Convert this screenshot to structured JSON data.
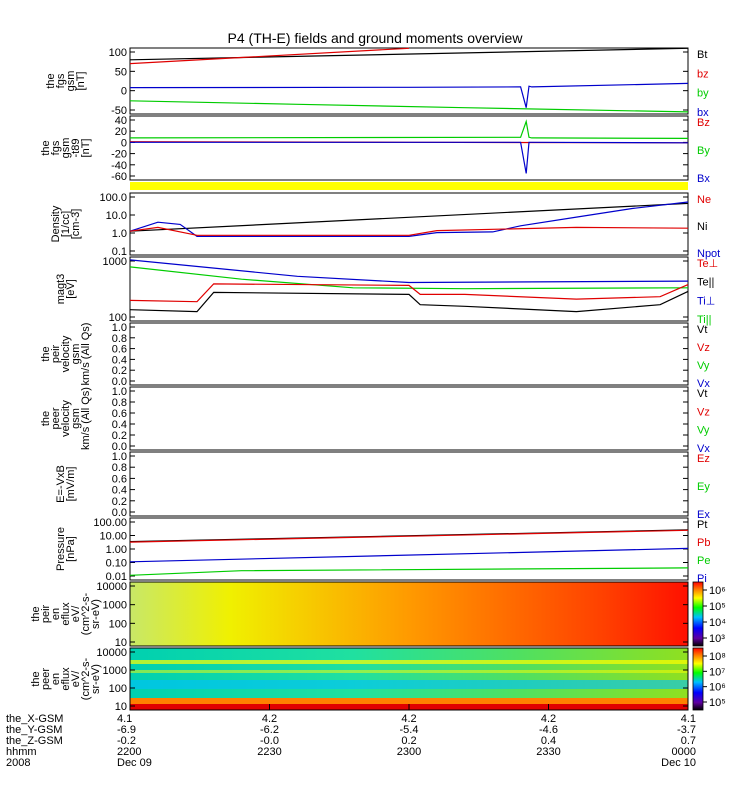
{
  "title": "P4 (TH-E) fields and ground moments overview",
  "colors": {
    "black": "#000000",
    "red": "#e00000",
    "green": "#00cc00",
    "blue": "#0000cc",
    "yellow": "#ffff00"
  },
  "chart_data": [
    {
      "type": "line",
      "panel": "fgs_gsm",
      "ylabel": [
        "the",
        "fgs",
        "gsm",
        "[nT]"
      ],
      "yticks": [
        "100",
        "50",
        "0",
        "-50"
      ],
      "ylim": [
        -78,
        112
      ],
      "legend": [
        {
          "name": "Bt",
          "color": "black"
        },
        {
          "name": "bz",
          "color": "red"
        },
        {
          "name": "by",
          "color": "green"
        },
        {
          "name": "bx",
          "color": "blue"
        }
      ],
      "series": [
        {
          "name": "Bt",
          "color": "black",
          "x": [
            0,
            1
          ],
          "y": [
            78,
            111
          ]
        },
        {
          "name": "bz",
          "color": "red",
          "x": [
            0,
            0.5
          ],
          "y": [
            67,
            111
          ]
        },
        {
          "name": "by",
          "color": "green",
          "x": [
            0,
            0.3,
            0.6,
            1
          ],
          "y": [
            -40,
            -50,
            -60,
            -72
          ]
        },
        {
          "name": "bx",
          "color": "blue",
          "x": [
            0,
            0.5,
            0.7,
            0.71,
            0.715,
            0.72,
            1
          ],
          "y": [
            -2,
            -1,
            0,
            -60,
            2,
            0,
            10
          ]
        }
      ]
    },
    {
      "type": "line",
      "panel": "fgs_dsl",
      "ylabel": [
        "the",
        "fgs",
        "gsm",
        "-t89",
        "[nT]"
      ],
      "yticks": [
        "40",
        "20",
        "0",
        "-20",
        "-40",
        "-60"
      ],
      "ylim": [
        -72,
        45
      ],
      "legend": [
        {
          "name": "Bz",
          "color": "red"
        },
        {
          "name": "By",
          "color": "green"
        },
        {
          "name": "Bx",
          "color": "blue"
        }
      ],
      "series": [
        {
          "name": "By",
          "color": "green",
          "x": [
            0,
            0.7,
            0.71,
            0.715,
            0.72,
            1
          ],
          "y": [
            5,
            6,
            35,
            6,
            5,
            4
          ]
        },
        {
          "name": "Bz",
          "color": "red",
          "x": [
            0,
            0.5,
            1
          ],
          "y": [
            -2,
            -3,
            -4
          ]
        },
        {
          "name": "Bx",
          "color": "blue",
          "x": [
            0,
            0.7,
            0.71,
            0.715,
            0.72,
            1
          ],
          "y": [
            -3,
            -3,
            -60,
            -3,
            -3,
            -4
          ]
        }
      ]
    },
    {
      "type": "line",
      "panel": "density",
      "log": true,
      "ylabel": [
        "Density",
        "[1/cc]",
        "[cm-3]"
      ],
      "yticks": [
        "100.0",
        "10.0",
        "1.0",
        "0.1"
      ],
      "ylim": [
        0.05,
        200
      ],
      "legend": [
        {
          "name": "Ne",
          "color": "red"
        },
        {
          "name": "Ni",
          "color": "black"
        },
        {
          "name": "Npot",
          "color": "blue"
        }
      ],
      "series": [
        {
          "name": "Ni",
          "color": "black",
          "x": [
            0,
            1
          ],
          "y": [
            1.2,
            50
          ]
        },
        {
          "name": "Npot",
          "color": "blue",
          "x": [
            0,
            0.05,
            0.09,
            0.12,
            0.5,
            0.55,
            0.65,
            0.7,
            0.8,
            0.9,
            1
          ],
          "y": [
            1.2,
            4,
            3,
            0.6,
            0.6,
            1,
            1.1,
            2.5,
            8,
            25,
            60
          ]
        },
        {
          "name": "Ne",
          "color": "red",
          "x": [
            0,
            0.05,
            0.12,
            0.5,
            0.55,
            0.8,
            1
          ],
          "y": [
            1.2,
            2,
            0.7,
            0.7,
            1.3,
            2,
            1.8
          ]
        }
      ]
    },
    {
      "type": "line",
      "panel": "temperature",
      "log": true,
      "ylabel": [
        "magt3",
        "[eV]"
      ],
      "yticks": [
        "1000",
        "100"
      ],
      "ylim": [
        100,
        1000
      ],
      "legend": [
        {
          "name": "Te⊥",
          "color": "red"
        },
        {
          "name": "Te||",
          "color": "black"
        },
        {
          "name": "Ti⊥",
          "color": "blue"
        },
        {
          "name": "Ti||",
          "color": "green"
        }
      ],
      "series": [
        {
          "name": "Ti⊥",
          "color": "blue",
          "x": [
            0,
            0.3,
            0.5,
            1
          ],
          "y": [
            900,
            500,
            400,
            420
          ]
        },
        {
          "name": "Ti||",
          "color": "green",
          "x": [
            0,
            0.2,
            0.4,
            0.6,
            1
          ],
          "y": [
            700,
            450,
            330,
            320,
            330
          ]
        },
        {
          "name": "Te⊥",
          "color": "red",
          "x": [
            0,
            0.12,
            0.15,
            0.5,
            0.52,
            0.6,
            0.8,
            0.95,
            1
          ],
          "y": [
            210,
            200,
            380,
            360,
            260,
            260,
            220,
            240,
            370
          ]
        },
        {
          "name": "Te||",
          "color": "black",
          "x": [
            0,
            0.12,
            0.15,
            0.5,
            0.52,
            0.6,
            0.8,
            0.95,
            1
          ],
          "y": [
            150,
            140,
            280,
            260,
            180,
            170,
            140,
            180,
            290
          ]
        }
      ]
    },
    {
      "type": "line",
      "panel": "peir_velocity",
      "ylabel": [
        "the",
        "peir",
        "velocity",
        "gsm",
        "km/s (All Qs)"
      ],
      "yticks": [
        "1.0",
        "0.8",
        "0.6",
        "0.4",
        "0.2",
        "0.0"
      ],
      "ylim": [
        0,
        1
      ],
      "legend": [
        {
          "name": "Vt",
          "color": "black"
        },
        {
          "name": "Vz",
          "color": "red"
        },
        {
          "name": "Vy",
          "color": "green"
        },
        {
          "name": "Vx",
          "color": "blue"
        }
      ],
      "series": []
    },
    {
      "type": "line",
      "panel": "peer_velocity",
      "ylabel": [
        "the",
        "peer",
        "velocity",
        "gsm",
        "km/s (All Qs)"
      ],
      "yticks": [
        "1.0",
        "0.8",
        "0.6",
        "0.4",
        "0.2",
        "0.0"
      ],
      "ylim": [
        0,
        1
      ],
      "legend": [
        {
          "name": "Vt",
          "color": "black"
        },
        {
          "name": "Vz",
          "color": "red"
        },
        {
          "name": "Vy",
          "color": "green"
        },
        {
          "name": "Vx",
          "color": "blue"
        }
      ],
      "series": []
    },
    {
      "type": "line",
      "panel": "efield",
      "ylabel": [
        "E=-VxB",
        "[mV/m]"
      ],
      "yticks": [
        "1.0",
        "0.8",
        "0.6",
        "0.4",
        "0.2",
        "0.0"
      ],
      "ylim": [
        0,
        1
      ],
      "legend": [
        {
          "name": "Ez",
          "color": "red"
        },
        {
          "name": "Ey",
          "color": "green"
        },
        {
          "name": "Ex",
          "color": "blue"
        }
      ],
      "series": []
    },
    {
      "type": "line",
      "panel": "pressure",
      "log": true,
      "ylabel": [
        "Pressure",
        "[nPa]"
      ],
      "yticks": [
        "100.00",
        "10.00",
        "1.00",
        "0.10",
        "0.01"
      ],
      "ylim": [
        0.01,
        100
      ],
      "legend": [
        {
          "name": "Pt",
          "color": "black"
        },
        {
          "name": "Pb",
          "color": "red"
        },
        {
          "name": "Pe",
          "color": "green"
        },
        {
          "name": "Pi",
          "color": "blue"
        }
      ],
      "series": [
        {
          "name": "Pt",
          "color": "black",
          "x": [
            0,
            1
          ],
          "y": [
            3,
            17
          ]
        },
        {
          "name": "Pb",
          "color": "red",
          "x": [
            0,
            1
          ],
          "y": [
            2.8,
            16
          ]
        },
        {
          "name": "Pi",
          "color": "blue",
          "x": [
            0,
            1
          ],
          "y": [
            0.15,
            1.1
          ]
        },
        {
          "name": "Pe",
          "color": "green",
          "x": [
            0,
            0.2,
            1
          ],
          "y": [
            0.02,
            0.04,
            0.06
          ]
        }
      ]
    },
    {
      "type": "heatmap",
      "panel": "peir_spec",
      "ylabel": [
        "the",
        "peir",
        "en",
        "eflux",
        "eV/",
        "(cm^2-s-",
        "sr-eV)"
      ],
      "yticks": [
        "10000",
        "1000",
        "100",
        "10"
      ],
      "cbar_ticks": [
        "10⁶",
        "10⁵",
        "10⁴",
        "10³"
      ]
    },
    {
      "type": "heatmap",
      "panel": "peer_spec",
      "ylabel": [
        "the",
        "peer",
        "en",
        "eflux",
        "eV/",
        "(cm^2-s-",
        "sr-eV)"
      ],
      "yticks": [
        "10000",
        "1000",
        "100",
        "10"
      ],
      "cbar_ticks": [
        "10⁸",
        "10⁷",
        "10⁶",
        "10⁵"
      ]
    }
  ],
  "footer": {
    "rows": [
      {
        "label": "the_X-GSM",
        "values": [
          "4.1",
          "4.2",
          "4.2",
          "4.2",
          "4.1"
        ]
      },
      {
        "label": "the_Y-GSM",
        "values": [
          "-6.9",
          "-6.2",
          "-5.4",
          "-4.6",
          "-3.7"
        ]
      },
      {
        "label": "the_Z-GSM",
        "values": [
          "-0.2",
          "-0.0",
          "0.2",
          "0.4",
          "0.7"
        ]
      },
      {
        "label": "hhmm",
        "values": [
          "2200",
          "2230",
          "2300",
          "2330",
          "0000"
        ]
      },
      {
        "label": "2008",
        "values": [
          "Dec 09",
          "",
          "",
          "",
          "Dec 10"
        ]
      }
    ]
  }
}
